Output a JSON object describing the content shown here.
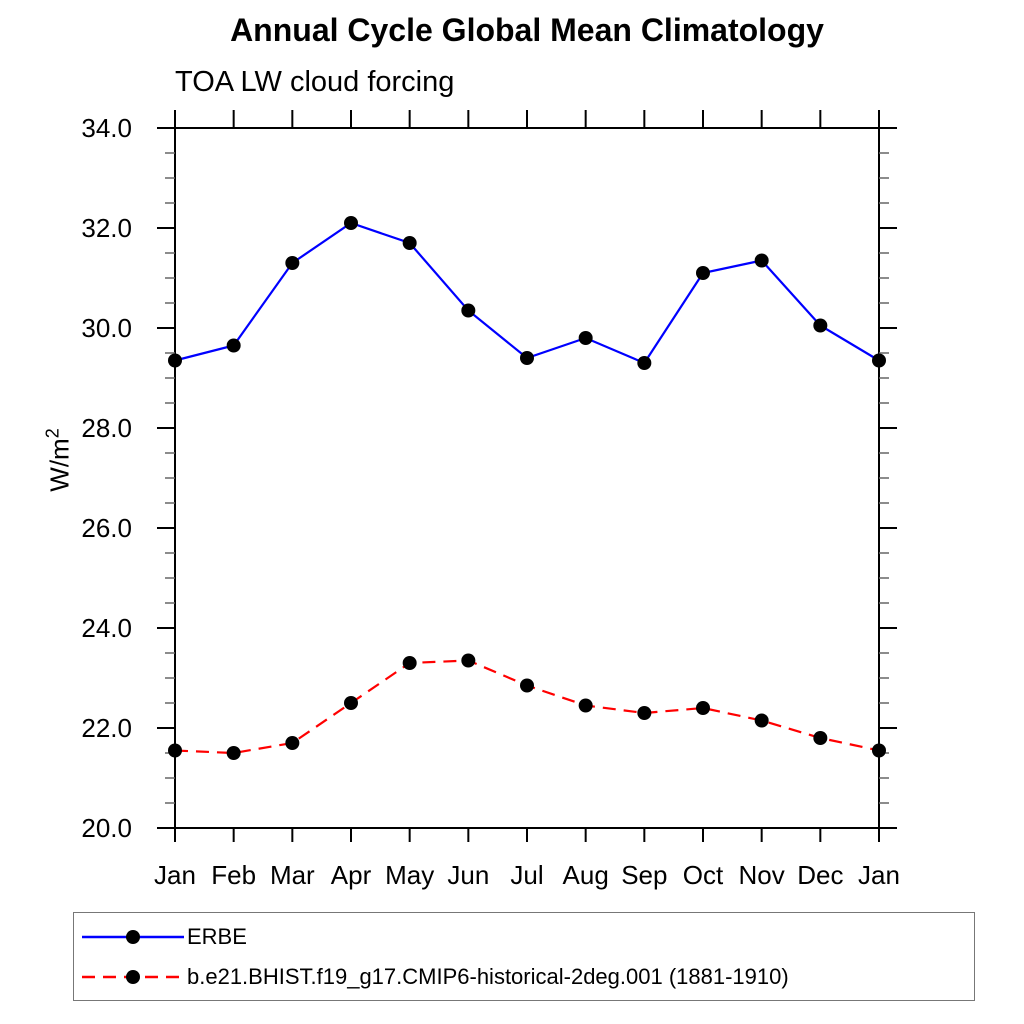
{
  "header": {
    "title": "Annual Cycle Global Mean Climatology",
    "subtitle": "TOA LW cloud forcing"
  },
  "y_axis": {
    "label": "W/m",
    "label_superscript": "2",
    "unit_display": "W/m²",
    "min": 20.0,
    "max": 34.0,
    "major_step": 2.0,
    "minor_step": 0.5,
    "tick_labels": [
      "20.0",
      "22.0",
      "24.0",
      "26.0",
      "28.0",
      "30.0",
      "32.0",
      "34.0"
    ]
  },
  "x_axis": {
    "tick_labels": [
      "Jan",
      "Feb",
      "Mar",
      "Apr",
      "May",
      "Jun",
      "Jul",
      "Aug",
      "Sep",
      "Oct",
      "Nov",
      "Dec",
      "Jan"
    ]
  },
  "colors": {
    "erbe_line": "#0000ff",
    "model_line": "#ff0000",
    "marker": "#000000",
    "axis": "#000000",
    "minor_tick": "#666666",
    "legend_border": "#777777"
  },
  "legend": {
    "items": [
      {
        "label": "ERBE",
        "line_style": "solid",
        "color": "#0000ff"
      },
      {
        "label": "b.e21.BHIST.f19_g17.CMIP6-historical-2deg.001 (1881-1910)",
        "line_style": "dashed",
        "color": "#ff0000"
      }
    ]
  },
  "chart_data": {
    "type": "line",
    "title": "Annual Cycle Global Mean Climatology",
    "subtitle": "TOA LW cloud forcing",
    "ylabel": "W/m²",
    "ylim": [
      20.0,
      34.0
    ],
    "y_major_step": 2.0,
    "y_minor_step": 0.5,
    "grid": false,
    "legend_position": "bottom",
    "categories": [
      "Jan",
      "Feb",
      "Mar",
      "Apr",
      "May",
      "Jun",
      "Jul",
      "Aug",
      "Sep",
      "Oct",
      "Nov",
      "Dec",
      "Jan"
    ],
    "series": [
      {
        "name": "ERBE",
        "color": "#0000ff",
        "line_style": "solid",
        "marker": "filled-circle",
        "marker_color": "#000000",
        "values": [
          29.35,
          29.65,
          31.3,
          32.1,
          31.7,
          30.35,
          29.4,
          29.8,
          29.3,
          31.1,
          31.35,
          30.05,
          29.35
        ]
      },
      {
        "name": "b.e21.BHIST.f19_g17.CMIP6-historical-2deg.001 (1881-1910)",
        "color": "#ff0000",
        "line_style": "dashed",
        "marker": "filled-circle",
        "marker_color": "#000000",
        "values": [
          21.55,
          21.5,
          21.7,
          22.5,
          23.3,
          23.35,
          22.85,
          22.45,
          22.3,
          22.4,
          22.15,
          21.8,
          21.55
        ]
      }
    ]
  }
}
